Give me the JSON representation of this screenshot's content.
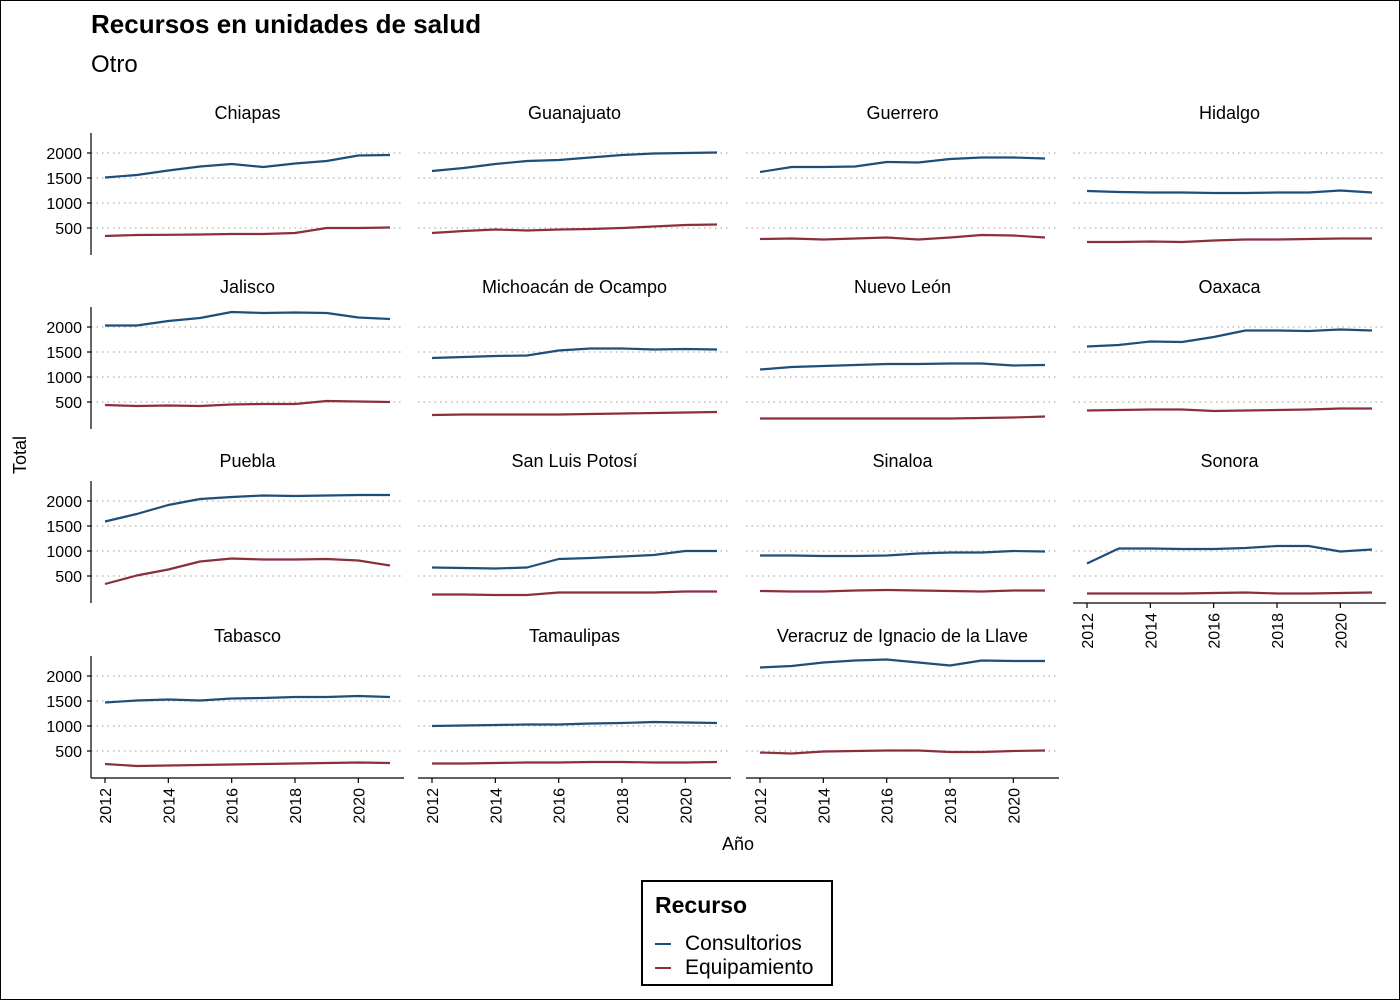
{
  "chart_data": {
    "type": "line",
    "title": "Recursos en unidades de salud",
    "subtitle": "Otro",
    "xlabel": "Año",
    "ylabel": "Total",
    "ylim": [
      0,
      2400
    ],
    "yticks": [
      500,
      1000,
      1500,
      2000
    ],
    "xticks": [
      2012,
      2014,
      2016,
      2018,
      2020
    ],
    "x": [
      2012,
      2013,
      2014,
      2015,
      2016,
      2017,
      2018,
      2019,
      2020,
      2021
    ],
    "grid": "horizontal-dotted",
    "legend": {
      "title": "Recurso",
      "position": "bottom",
      "items": [
        {
          "name": "Consultorios",
          "color": "#1f4e79"
        },
        {
          "name": "Equipamiento",
          "color": "#8b2f3c"
        }
      ]
    },
    "panels": [
      {
        "name": "Chiapas",
        "series": [
          {
            "name": "Consultorios",
            "values": [
              1510,
              1560,
              1650,
              1730,
              1780,
              1720,
              1790,
              1840,
              1950,
              1960
            ]
          },
          {
            "name": "Equipamiento",
            "values": [
              340,
              360,
              365,
              370,
              380,
              380,
              400,
              500,
              500,
              510
            ]
          }
        ]
      },
      {
        "name": "Guanajuato",
        "series": [
          {
            "name": "Consultorios",
            "values": [
              1640,
              1700,
              1780,
              1840,
              1860,
              1910,
              1960,
              1990,
              2000,
              2010
            ]
          },
          {
            "name": "Equipamiento",
            "values": [
              400,
              440,
              470,
              450,
              470,
              480,
              500,
              530,
              560,
              570
            ]
          }
        ]
      },
      {
        "name": "Guerrero",
        "series": [
          {
            "name": "Consultorios",
            "values": [
              1620,
              1720,
              1720,
              1730,
              1820,
              1810,
              1880,
              1910,
              1910,
              1890
            ]
          },
          {
            "name": "Equipamiento",
            "values": [
              280,
              290,
              270,
              290,
              310,
              270,
              310,
              360,
              350,
              310
            ]
          }
        ]
      },
      {
        "name": "Hidalgo",
        "series": [
          {
            "name": "Consultorios",
            "values": [
              1240,
              1220,
              1210,
              1210,
              1200,
              1200,
              1210,
              1210,
              1250,
              1210
            ]
          },
          {
            "name": "Equipamiento",
            "values": [
              220,
              220,
              230,
              220,
              250,
              270,
              270,
              280,
              290,
              290
            ]
          }
        ]
      },
      {
        "name": "Jalisco",
        "series": [
          {
            "name": "Consultorios",
            "values": [
              2030,
              2030,
              2120,
              2180,
              2300,
              2280,
              2290,
              2280,
              2190,
              2160
            ]
          },
          {
            "name": "Equipamiento",
            "values": [
              440,
              420,
              430,
              420,
              450,
              460,
              460,
              520,
              510,
              500
            ]
          }
        ]
      },
      {
        "name": "Michoacán de Ocampo",
        "series": [
          {
            "name": "Consultorios",
            "values": [
              1380,
              1400,
              1420,
              1430,
              1530,
              1570,
              1570,
              1550,
              1560,
              1550
            ]
          },
          {
            "name": "Equipamiento",
            "values": [
              240,
              250,
              250,
              250,
              250,
              260,
              270,
              280,
              290,
              300
            ]
          }
        ]
      },
      {
        "name": "Nuevo León",
        "series": [
          {
            "name": "Consultorios",
            "values": [
              1150,
              1200,
              1220,
              1240,
              1260,
              1260,
              1270,
              1270,
              1230,
              1240
            ]
          },
          {
            "name": "Equipamiento",
            "values": [
              170,
              170,
              170,
              170,
              170,
              170,
              170,
              180,
              190,
              210
            ]
          }
        ]
      },
      {
        "name": "Oaxaca",
        "series": [
          {
            "name": "Consultorios",
            "values": [
              1610,
              1640,
              1710,
              1700,
              1800,
              1930,
              1930,
              1920,
              1950,
              1930
            ]
          },
          {
            "name": "Equipamiento",
            "values": [
              330,
              340,
              350,
              350,
              320,
              330,
              340,
              350,
              370,
              370
            ]
          }
        ]
      },
      {
        "name": "Puebla",
        "series": [
          {
            "name": "Consultorios",
            "values": [
              1590,
              1740,
              1920,
              2040,
              2080,
              2110,
              2100,
              2110,
              2120,
              2120
            ]
          },
          {
            "name": "Equipamiento",
            "values": [
              340,
              510,
              630,
              790,
              850,
              830,
              830,
              840,
              810,
              710
            ]
          }
        ]
      },
      {
        "name": "San Luis Potosí",
        "series": [
          {
            "name": "Consultorios",
            "values": [
              670,
              660,
              650,
              670,
              840,
              860,
              890,
              920,
              1000,
              1000
            ]
          },
          {
            "name": "Equipamiento",
            "values": [
              130,
              130,
              120,
              120,
              170,
              170,
              170,
              170,
              190,
              190
            ]
          }
        ]
      },
      {
        "name": "Sinaloa",
        "series": [
          {
            "name": "Consultorios",
            "values": [
              910,
              910,
              900,
              900,
              910,
              950,
              970,
              970,
              1000,
              990
            ]
          },
          {
            "name": "Equipamiento",
            "values": [
              200,
              190,
              190,
              210,
              220,
              210,
              200,
              190,
              210,
              210
            ]
          }
        ]
      },
      {
        "name": "Sonora",
        "series": [
          {
            "name": "Consultorios",
            "values": [
              750,
              1050,
              1050,
              1040,
              1040,
              1060,
              1100,
              1100,
              990,
              1030
            ]
          },
          {
            "name": "Equipamiento",
            "values": [
              150,
              150,
              150,
              150,
              160,
              170,
              150,
              150,
              160,
              170
            ]
          }
        ]
      },
      {
        "name": "Tabasco",
        "series": [
          {
            "name": "Consultorios",
            "values": [
              1470,
              1510,
              1530,
              1510,
              1550,
              1560,
              1580,
              1580,
              1600,
              1580
            ]
          },
          {
            "name": "Equipamiento",
            "values": [
              240,
              200,
              210,
              220,
              230,
              240,
              250,
              260,
              270,
              260
            ]
          }
        ]
      },
      {
        "name": "Tamaulipas",
        "series": [
          {
            "name": "Consultorios",
            "values": [
              1000,
              1010,
              1020,
              1030,
              1030,
              1050,
              1060,
              1080,
              1070,
              1060
            ]
          },
          {
            "name": "Equipamiento",
            "values": [
              250,
              250,
              260,
              270,
              270,
              280,
              280,
              270,
              270,
              280
            ]
          }
        ]
      },
      {
        "name": "Veracruz de Ignacio de la Llave",
        "series": [
          {
            "name": "Consultorios",
            "values": [
              2170,
              2200,
              2270,
              2310,
              2330,
              2270,
              2210,
              2310,
              2300,
              2300
            ]
          },
          {
            "name": "Equipamiento",
            "values": [
              470,
              450,
              490,
              500,
              510,
              510,
              480,
              480,
              500,
              510
            ]
          }
        ]
      }
    ]
  }
}
